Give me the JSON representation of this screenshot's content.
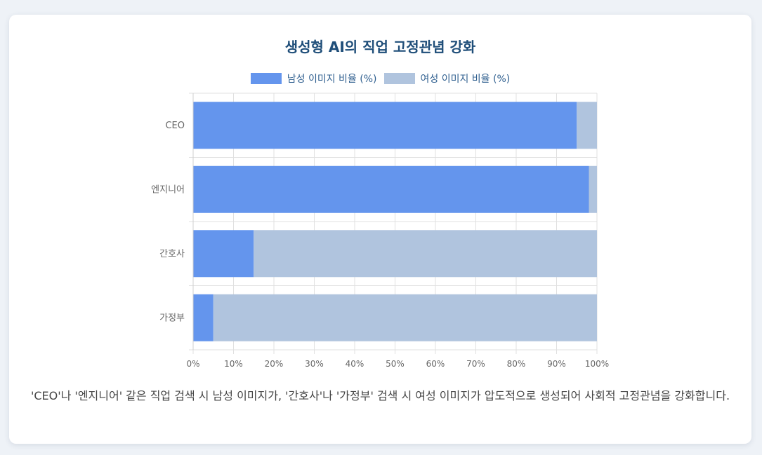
{
  "title": "생성형 AI의 직업 고정관념 강화",
  "caption": "'CEO'나 '엔지니어' 같은 직업 검색 시 남성 이미지가, '간호사'나 '가정부' 검색 시 여성 이미지가 압도적으로 생성되어 사회적 고정관념을 강화합니다.",
  "colors": {
    "male": "#6495ed",
    "female": "#b0c4de",
    "title": "#1f4e79",
    "grid": "#e0e0e0"
  },
  "chart_data": {
    "type": "bar",
    "orientation": "horizontal",
    "stacked": true,
    "categories": [
      "CEO",
      "엔지니어",
      "간호사",
      "가정부"
    ],
    "series": [
      {
        "name": "남성 이미지 비율 (%)",
        "values": [
          95,
          98,
          15,
          5
        ]
      },
      {
        "name": "여성 이미지 비율 (%)",
        "values": [
          5,
          2,
          85,
          95
        ]
      }
    ],
    "xlim": [
      0,
      100
    ],
    "xticks": [
      "0%",
      "10%",
      "20%",
      "30%",
      "40%",
      "50%",
      "60%",
      "70%",
      "80%",
      "90%",
      "100%"
    ],
    "grid": true,
    "legend": "top"
  }
}
